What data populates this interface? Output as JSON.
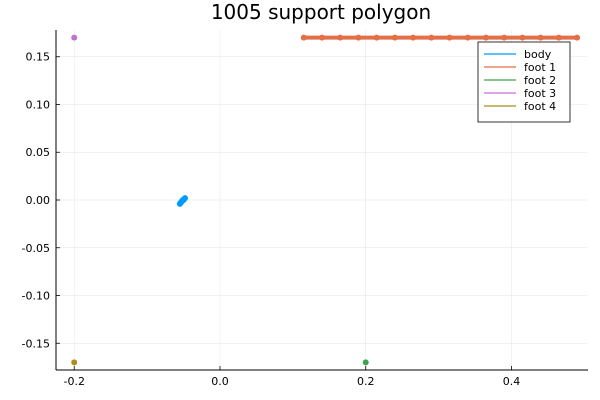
{
  "chart_data": {
    "type": "scatter",
    "title": "1005 support polygon",
    "xlabel": "",
    "ylabel": "",
    "xlim": [
      -0.225,
      0.505
    ],
    "ylim": [
      -0.178,
      0.178
    ],
    "x_ticks": [
      -0.2,
      0.0,
      0.2,
      0.4
    ],
    "x_tick_labels": [
      "-0.2",
      "0.0",
      "0.2",
      "0.4"
    ],
    "y_ticks": [
      -0.15,
      -0.1,
      -0.05,
      0.0,
      0.05,
      0.1,
      0.15
    ],
    "y_tick_labels": [
      "-0.15",
      "-0.10",
      "-0.05",
      "0.00",
      "0.05",
      "0.10",
      "0.15"
    ],
    "grid": true,
    "legend_position": "top-right",
    "series": [
      {
        "name": "body",
        "color": "#009AFA",
        "points": [
          [
            -0.055,
            -0.004
          ],
          [
            -0.054,
            -0.003
          ],
          [
            -0.053,
            -0.002
          ],
          [
            -0.052,
            -0.001
          ],
          [
            -0.051,
            0.0
          ],
          [
            -0.05,
            0.0
          ],
          [
            -0.049,
            0.001
          ],
          [
            -0.048,
            0.002
          ]
        ]
      },
      {
        "name": "foot 1",
        "color": "#E26F46",
        "points": [
          [
            0.115,
            0.17
          ],
          [
            0.14,
            0.17
          ],
          [
            0.165,
            0.17
          ],
          [
            0.19,
            0.17
          ],
          [
            0.215,
            0.17
          ],
          [
            0.24,
            0.17
          ],
          [
            0.265,
            0.17
          ],
          [
            0.29,
            0.17
          ],
          [
            0.315,
            0.17
          ],
          [
            0.34,
            0.17
          ],
          [
            0.365,
            0.17
          ],
          [
            0.39,
            0.17
          ],
          [
            0.415,
            0.17
          ],
          [
            0.44,
            0.17
          ],
          [
            0.465,
            0.17
          ],
          [
            0.49,
            0.17
          ]
        ]
      },
      {
        "name": "foot 2",
        "color": "#3DA44D",
        "points": [
          [
            0.2,
            -0.17
          ]
        ]
      },
      {
        "name": "foot 3",
        "color": "#C271D2",
        "points": [
          [
            -0.2,
            0.17
          ]
        ]
      },
      {
        "name": "foot 4",
        "color": "#AC8D18",
        "points": [
          [
            -0.2,
            -0.17
          ]
        ]
      }
    ]
  }
}
